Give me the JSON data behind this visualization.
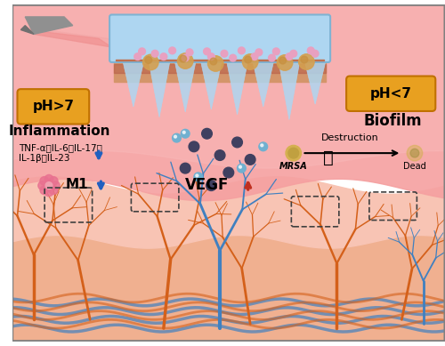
{
  "bg_color": "#ffffff",
  "skin_top_color": "#f5a0a0",
  "skin_mid_color": "#f8c4b4",
  "skin_bottom_color": "#f0b090",
  "skin_deep_color": "#e8956d",
  "patch_color": "#aed6f1",
  "patch_border": "#7fb3d3",
  "needle_color": "#c8c8c8",
  "laser_color": "#f08080",
  "microneedle_color": "#aed6f1",
  "biofilm_dots_pink": "#e8a0c0",
  "biofilm_blob_yellow": "#d4a050",
  "particle_dark": "#404060",
  "particle_light": "#70b0d0",
  "ph_box_color": "#e8a020",
  "inflammation_text": "Inflammation",
  "biofilm_text": "Biofilm",
  "cytokine_text": "TNF-α、IL-6、IL-17、\nIL-1β、IL-23",
  "m1_text": "M1",
  "vegf_text": "VEGF",
  "destruction_text": "Destruction",
  "mrsa_text": "MRSA",
  "dead_text": "Dead",
  "ph_left": "pH>7",
  "ph_right": "pH<7",
  "vessel_orange": "#d4601a",
  "vessel_blue": "#4080c0",
  "collagen_color": "#c06030"
}
